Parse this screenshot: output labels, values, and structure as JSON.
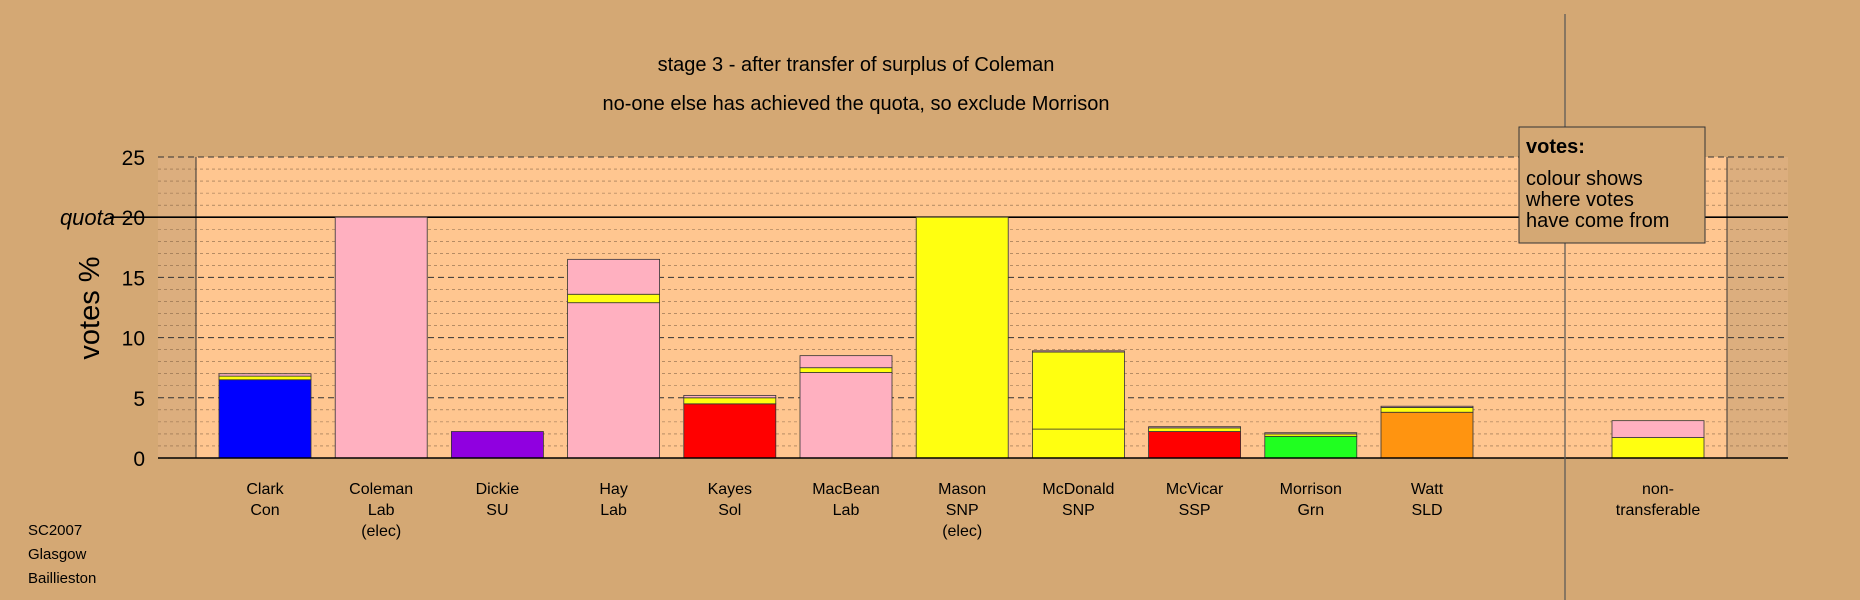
{
  "chart_data": {
    "type": "bar",
    "stacked": true,
    "title": "stage 3 - after transfer of surplus of Coleman",
    "subtitle": "no-one else has achieved the quota, so exclude Morrison",
    "ylabel": "votes %",
    "ylim": [
      0,
      25
    ],
    "yticks": [
      "0",
      "5",
      "10",
      "15",
      "20",
      "25"
    ],
    "quota": 20,
    "quota_label": "quota",
    "grid": true,
    "legend_position": "top-right",
    "legend": {
      "title": "votes:",
      "lines": [
        "colour shows",
        "where votes",
        "have come from"
      ]
    },
    "colors": {
      "Con": "#0000ff",
      "Lab": "#ffb0c0",
      "SU": "#9000e0",
      "Sol": "#ff0000",
      "SNP": "#ffff10",
      "SSP": "#ff0000",
      "Grn": "#20ff20",
      "SLD": "#ff9410"
    },
    "categories": [
      {
        "lines": [
          "Clark",
          "Con"
        ],
        "segments": [
          {
            "from": "Con",
            "value": 6.5
          },
          {
            "from": "SNP",
            "value": 0.3
          },
          {
            "from": "Lab",
            "value": 0.2
          }
        ]
      },
      {
        "lines": [
          "Coleman",
          "Lab",
          "(elec)"
        ],
        "segments": [
          {
            "from": "Lab",
            "value": 20.0
          }
        ]
      },
      {
        "lines": [
          "Dickie",
          "SU"
        ],
        "segments": [
          {
            "from": "SU",
            "value": 2.2
          }
        ]
      },
      {
        "lines": [
          "Hay",
          "Lab"
        ],
        "segments": [
          {
            "from": "Lab",
            "value": 12.9
          },
          {
            "from": "SNP",
            "value": 0.7
          },
          {
            "from": "Lab",
            "value": 2.9
          }
        ]
      },
      {
        "lines": [
          "Kayes",
          "Sol"
        ],
        "segments": [
          {
            "from": "Sol",
            "value": 4.5
          },
          {
            "from": "SNP",
            "value": 0.5
          },
          {
            "from": "Lab",
            "value": 0.2
          }
        ]
      },
      {
        "lines": [
          "MacBean",
          "Lab"
        ],
        "segments": [
          {
            "from": "Lab",
            "value": 7.1
          },
          {
            "from": "SNP",
            "value": 0.4
          },
          {
            "from": "Lab",
            "value": 1.0
          }
        ]
      },
      {
        "lines": [
          "Mason",
          "SNP",
          "(elec)"
        ],
        "segments": [
          {
            "from": "SNP",
            "value": 20.0
          }
        ]
      },
      {
        "lines": [
          "McDonald",
          "SNP"
        ],
        "segments": [
          {
            "from": "SNP",
            "value": 2.4
          },
          {
            "from": "SNP",
            "value": 6.4
          },
          {
            "from": "Lab",
            "value": 0.1
          }
        ]
      },
      {
        "lines": [
          "McVicar",
          "SSP"
        ],
        "segments": [
          {
            "from": "SSP",
            "value": 2.2
          },
          {
            "from": "SNP",
            "value": 0.3
          },
          {
            "from": "Lab",
            "value": 0.1
          }
        ]
      },
      {
        "lines": [
          "Morrison",
          "Grn"
        ],
        "segments": [
          {
            "from": "Grn",
            "value": 1.8
          },
          {
            "from": "SNP",
            "value": 0.2
          },
          {
            "from": "Lab",
            "value": 0.1
          }
        ]
      },
      {
        "lines": [
          "Watt",
          "SLD"
        ],
        "segments": [
          {
            "from": "SLD",
            "value": 3.8
          },
          {
            "from": "SNP",
            "value": 0.4
          },
          {
            "from": "Lab",
            "value": 0.1
          }
        ]
      }
    ],
    "nontransferable": {
      "lines": [
        "non-",
        "transferable"
      ],
      "segments": [
        {
          "from": "SNP",
          "value": 1.7
        },
        {
          "from": "Lab",
          "value": 1.4
        }
      ]
    }
  },
  "footer": {
    "line1": "SC2007",
    "line2": "Glasgow",
    "line3": "Baillieston"
  }
}
